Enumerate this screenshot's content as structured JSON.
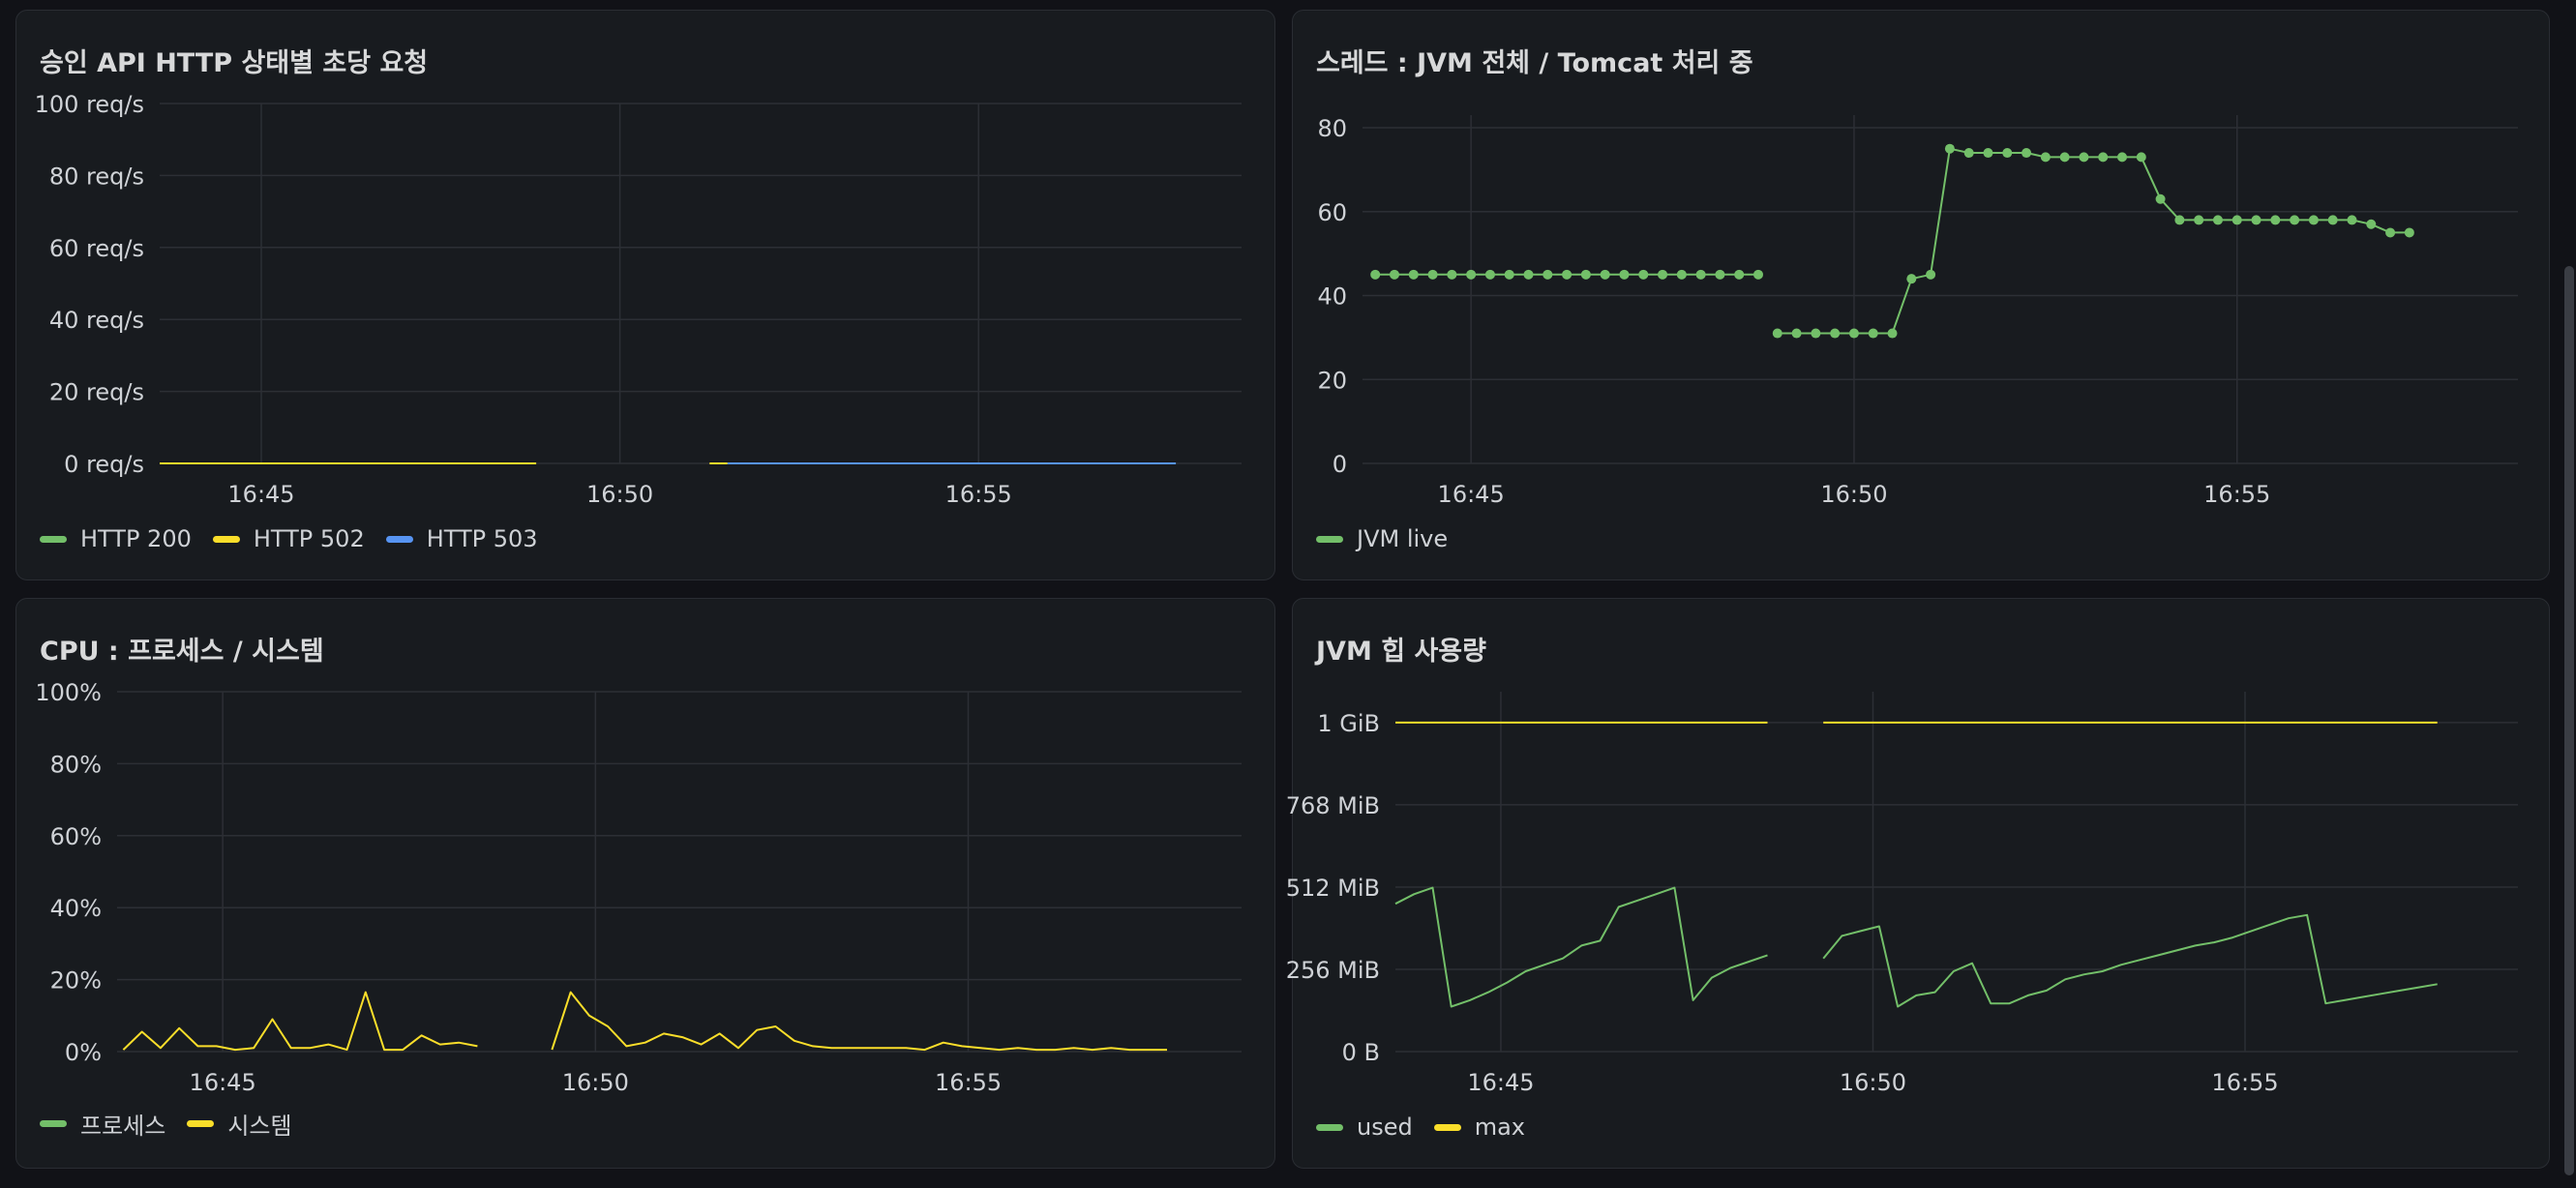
{
  "colors": {
    "green": "#73bf69",
    "yellow": "#fade2a",
    "blue": "#5794f2",
    "grid": "#2c2f35",
    "axis_text": "#cfd2d6"
  },
  "panels": [
    {
      "id": "p1",
      "title": "승인 API HTTP 상태별 초당 요청",
      "legend": [
        {
          "label": "HTTP 200",
          "color": "#73bf69"
        },
        {
          "label": "HTTP 502",
          "color": "#fade2a"
        },
        {
          "label": "HTTP 503",
          "color": "#5794f2"
        }
      ]
    },
    {
      "id": "p2",
      "title": "스레드 : JVM 전체 / Tomcat 처리 중",
      "legend": [
        {
          "label": "JVM live",
          "color": "#73bf69"
        }
      ]
    },
    {
      "id": "p3",
      "title": "CPU : 프로세스 / 시스템",
      "legend": [
        {
          "label": "프로세스",
          "color": "#73bf69"
        },
        {
          "label": "시스템",
          "color": "#fade2a"
        }
      ]
    },
    {
      "id": "p4",
      "title": "JVM 힙 사용량",
      "legend": [
        {
          "label": "used",
          "color": "#73bf69"
        },
        {
          "label": "max",
          "color": "#fade2a"
        }
      ]
    }
  ],
  "chart_data": [
    {
      "type": "line",
      "title": "승인 API HTTP 상태별 초당 요청",
      "x_range": [
        "16:43:35",
        "16:58:40"
      ],
      "x_ticks": [
        "16:45",
        "16:50",
        "16:55"
      ],
      "y_ticks": [
        "0 req/s",
        "20 req/s",
        "40 req/s",
        "60 req/s",
        "80 req/s",
        "100 req/s"
      ],
      "ylim": [
        0,
        100
      ],
      "series": [
        {
          "name": "HTTP 502",
          "color": "#fade2a",
          "x": [
            "16:43:35",
            "16:48:50"
          ],
          "values": [
            0,
            0
          ]
        },
        {
          "name": "HTTP 502",
          "color": "#fade2a",
          "x": [
            "16:51:15",
            "16:51:30"
          ],
          "values": [
            0,
            0
          ]
        },
        {
          "name": "HTTP 503",
          "color": "#5794f2",
          "x": [
            "16:51:30",
            "16:57:45"
          ],
          "values": [
            0,
            0
          ]
        }
      ]
    },
    {
      "type": "line",
      "title": "스레드 : JVM 전체 / Tomcat 처리 중",
      "x_range": [
        "16:43:35",
        "16:58:40"
      ],
      "x_ticks": [
        "16:45",
        "16:50",
        "16:55"
      ],
      "y_ticks": [
        "0",
        "20",
        "40",
        "60",
        "80"
      ],
      "ylim": [
        0,
        83
      ],
      "grid": true,
      "series": [
        {
          "name": "JVM live",
          "color": "#73bf69",
          "markers": true,
          "x": [
            "16:43:45",
            "16:44:00",
            "16:44:15",
            "16:44:30",
            "16:44:45",
            "16:45:00",
            "16:45:15",
            "16:45:30",
            "16:45:45",
            "16:46:00",
            "16:46:15",
            "16:46:30",
            "16:46:45",
            "16:47:00",
            "16:47:15",
            "16:47:30",
            "16:47:45",
            "16:48:00",
            "16:48:15",
            "16:48:30",
            "16:48:45"
          ],
          "values": [
            45,
            45,
            45,
            45,
            45,
            45,
            45,
            45,
            45,
            45,
            45,
            45,
            45,
            45,
            45,
            45,
            45,
            45,
            45,
            45,
            45
          ]
        },
        {
          "name": "JVM live",
          "color": "#73bf69",
          "markers": true,
          "x": [
            "16:49:00",
            "16:49:15",
            "16:49:30",
            "16:49:45",
            "16:50:00",
            "16:50:15",
            "16:50:30",
            "16:50:45",
            "16:51:00",
            "16:51:15",
            "16:51:30",
            "16:51:45",
            "16:52:00",
            "16:52:15",
            "16:52:30",
            "16:52:45",
            "16:53:00",
            "16:53:15",
            "16:53:30",
            "16:53:45",
            "16:54:00",
            "16:54:15",
            "16:54:30",
            "16:54:45",
            "16:55:00",
            "16:55:15",
            "16:55:30",
            "16:55:45",
            "16:56:00",
            "16:56:15",
            "16:56:30",
            "16:56:45",
            "16:57:00",
            "16:57:15"
          ],
          "values": [
            31,
            31,
            31,
            31,
            31,
            31,
            31,
            44,
            45,
            75,
            74,
            74,
            74,
            74,
            73,
            73,
            73,
            73,
            73,
            73,
            63,
            58,
            58,
            58,
            58,
            58,
            58,
            58,
            58,
            58,
            58,
            57,
            55,
            55
          ]
        }
      ]
    },
    {
      "type": "line",
      "title": "CPU : 프로세스 / 시스템",
      "x_range": [
        "16:43:35",
        "16:58:40"
      ],
      "x_ticks": [
        "16:45",
        "16:50",
        "16:55"
      ],
      "y_ticks": [
        "0%",
        "20%",
        "40%",
        "60%",
        "80%",
        "100%"
      ],
      "ylim": [
        0,
        100
      ],
      "grid": true,
      "series": [
        {
          "name": "시스템",
          "color": "#fade2a",
          "x": [
            "16:43:40",
            "16:43:55",
            "16:44:10",
            "16:44:25",
            "16:44:40",
            "16:44:55",
            "16:45:10",
            "16:45:25",
            "16:45:40",
            "16:45:55",
            "16:46:10",
            "16:46:25",
            "16:46:40",
            "16:46:55",
            "16:47:10",
            "16:47:25",
            "16:47:40",
            "16:47:55",
            "16:48:10",
            "16:48:25"
          ],
          "values": [
            0.5,
            5.5,
            1,
            6.5,
            1.5,
            1.5,
            0.5,
            1,
            9,
            1,
            1,
            2,
            0.5,
            16.5,
            0.5,
            0.5,
            4.5,
            2,
            2.5,
            1.5
          ]
        },
        {
          "name": "시스템",
          "color": "#fade2a",
          "x": [
            "16:49:25",
            "16:49:40",
            "16:49:55",
            "16:50:10",
            "16:50:25",
            "16:50:40",
            "16:50:55",
            "16:51:10",
            "16:51:25",
            "16:51:40",
            "16:51:55",
            "16:52:10",
            "16:52:25",
            "16:52:40",
            "16:52:55",
            "16:53:10",
            "16:53:25",
            "16:53:40",
            "16:53:55",
            "16:54:10",
            "16:54:25",
            "16:54:40",
            "16:54:55",
            "16:55:10",
            "16:55:25",
            "16:55:40",
            "16:55:55",
            "16:56:10",
            "16:56:25",
            "16:56:40",
            "16:56:55",
            "16:57:10",
            "16:57:25",
            "16:57:40"
          ],
          "values": [
            0.5,
            16.5,
            10,
            7,
            1.5,
            2.5,
            5,
            4,
            2,
            5,
            1,
            6,
            7,
            3,
            1.5,
            1,
            1,
            1,
            1,
            1,
            0.5,
            2.5,
            1.5,
            1,
            0.5,
            1,
            0.5,
            0.5,
            1,
            0.5,
            1,
            0.5,
            0.5,
            0.5
          ]
        }
      ]
    },
    {
      "type": "line",
      "title": "JVM 힙 사용량",
      "x_range": [
        "16:43:35",
        "16:58:40"
      ],
      "x_ticks": [
        "16:45",
        "16:50",
        "16:55"
      ],
      "y_ticks": [
        "0 B",
        "256 MiB",
        "512 MiB",
        "768 MiB",
        "1 GiB"
      ],
      "ylim": [
        0,
        1120
      ],
      "grid": true,
      "series": [
        {
          "name": "max",
          "color": "#fade2a",
          "x": [
            "16:43:35",
            "16:48:35"
          ],
          "values": [
            1024,
            1024
          ]
        },
        {
          "name": "max",
          "color": "#fade2a",
          "x": [
            "16:49:20",
            "16:57:35"
          ],
          "values": [
            1024,
            1024
          ]
        },
        {
          "name": "used",
          "color": "#73bf69",
          "x": [
            "16:43:35",
            "16:43:50",
            "16:44:05",
            "16:44:20",
            "16:44:35",
            "16:44:50",
            "16:45:05",
            "16:45:20",
            "16:45:35",
            "16:45:50",
            "16:46:05",
            "16:46:20",
            "16:46:35",
            "16:46:50",
            "16:47:05",
            "16:47:20",
            "16:47:35",
            "16:47:50",
            "16:48:05",
            "16:48:20",
            "16:48:35"
          ],
          "values": [
            460,
            490,
            510,
            140,
            160,
            185,
            215,
            250,
            270,
            290,
            330,
            345,
            450,
            470,
            490,
            510,
            160,
            230,
            260,
            280,
            300
          ]
        },
        {
          "name": "used",
          "color": "#73bf69",
          "x": [
            "16:49:20",
            "16:49:35",
            "16:49:50",
            "16:50:05",
            "16:50:20",
            "16:50:35",
            "16:50:50",
            "16:51:05",
            "16:51:20",
            "16:51:35",
            "16:51:50",
            "16:52:05",
            "16:52:20",
            "16:52:35",
            "16:52:50",
            "16:53:05",
            "16:53:20",
            "16:53:35",
            "16:53:50",
            "16:54:05",
            "16:54:20",
            "16:54:35",
            "16:54:50",
            "16:55:05",
            "16:55:20",
            "16:55:35",
            "16:55:50",
            "16:56:05",
            "16:56:20",
            "16:56:35",
            "16:56:50",
            "16:57:05",
            "16:57:20",
            "16:57:35"
          ],
          "values": [
            290,
            360,
            375,
            390,
            140,
            175,
            185,
            250,
            275,
            150,
            150,
            175,
            190,
            225,
            240,
            250,
            270,
            285,
            300,
            315,
            330,
            340,
            355,
            375,
            395,
            415,
            425,
            150,
            160,
            170,
            180,
            190,
            200,
            210
          ]
        }
      ]
    }
  ]
}
